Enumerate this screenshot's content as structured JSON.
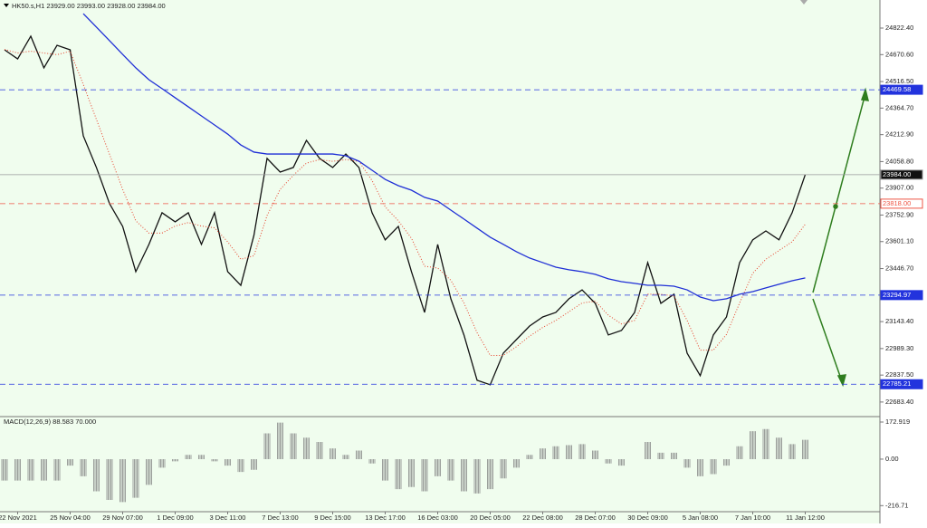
{
  "chart_data": [
    {
      "type": "line",
      "title": "HK50.s,H1  23929.00 23993.00 23928.00 23984.00",
      "categories": [
        null,
        "22 Nov 2021",
        null,
        null,
        null,
        "25 Nov 04:00",
        null,
        null,
        null,
        "29 Nov 07:00",
        null,
        null,
        null,
        "1 Dec 09:00",
        null,
        null,
        null,
        "3 Dec 11:00",
        null,
        null,
        null,
        "7 Dec 13:00",
        null,
        null,
        null,
        "9 Dec 15:00",
        null,
        null,
        null,
        "13 Dec 17:00",
        null,
        null,
        null,
        "16 Dec 03:00",
        null,
        null,
        null,
        "20 Dec 05:00",
        null,
        null,
        null,
        "22 Dec 08:00",
        null,
        null,
        null,
        "28 Dec 07:00",
        null,
        null,
        null,
        "30 Dec 09:00",
        null,
        null,
        null,
        "5 Jan 08:00",
        null,
        null,
        null,
        "7 Jan 10:00",
        null,
        null,
        null,
        "11 Jan 12:00"
      ],
      "series": [
        {
          "color": "#111111",
          "style": "solid",
          "values": [
            24698,
            24646,
            24776,
            24595,
            24724,
            24698,
            24206,
            24025,
            23818,
            23688,
            23429,
            23585,
            23766,
            23714,
            23766,
            23585,
            23766,
            23429,
            23351,
            23637,
            24077,
            23999,
            24025,
            24180,
            24077,
            24025,
            24102,
            24025,
            23766,
            23611,
            23688,
            23429,
            23196,
            23585,
            23274,
            23067,
            22808,
            22782,
            22963,
            23041,
            23118,
            23170,
            23196,
            23274,
            23325,
            23248,
            23067,
            23093,
            23196,
            23481,
            23248,
            23300,
            22963,
            22834,
            23067,
            23170,
            23481,
            23611,
            23662,
            23611,
            23766,
            23984
          ]
        },
        {
          "color": "#e8402a",
          "style": "dotted",
          "values": [
            24700,
            24680,
            24690,
            24680,
            24670,
            24690,
            24500,
            24300,
            24100,
            23900,
            23720,
            23650,
            23650,
            23690,
            23710,
            23690,
            23680,
            23600,
            23500,
            23520,
            23750,
            23900,
            23980,
            24050,
            24070,
            24060,
            24070,
            24060,
            23950,
            23800,
            23720,
            23620,
            23460,
            23450,
            23380,
            23250,
            23080,
            22950,
            22950,
            23000,
            23060,
            23110,
            23150,
            23200,
            23250,
            23260,
            23180,
            23130,
            23150,
            23300,
            23300,
            23290,
            23150,
            22980,
            22980,
            23070,
            23250,
            23420,
            23500,
            23550,
            23600,
            23700
          ]
        },
        {
          "color": "#1f2fd6",
          "style": "solid",
          "values": [
            null,
            null,
            null,
            null,
            null,
            null,
            24905,
            24828,
            24750,
            24672,
            24595,
            24527,
            24476,
            24424,
            24372,
            24320,
            24268,
            24216,
            24154,
            24113,
            24102,
            24102,
            24102,
            24102,
            24102,
            24102,
            24092,
            24061,
            24009,
            23957,
            23921,
            23895,
            23854,
            23833,
            23781,
            23730,
            23678,
            23626,
            23585,
            23543,
            23507,
            23481,
            23455,
            23440,
            23429,
            23414,
            23388,
            23372,
            23362,
            23351,
            23351,
            23346,
            23325,
            23284,
            23263,
            23274,
            23300,
            23315,
            23336,
            23357,
            23377,
            23393
          ]
        }
      ],
      "levels": [
        {
          "value": 24469.58,
          "color": "#2233dd"
        },
        {
          "value": 23984,
          "label": "23984.00",
          "color": "#999999"
        },
        {
          "value": 23818,
          "label": "23818.00",
          "color": "#ee5544"
        },
        {
          "value": 23294.97,
          "color": "#2233dd"
        },
        {
          "value": 22785.21,
          "color": "#2233dd"
        }
      ],
      "ylim": [
        22600,
        24983
      ],
      "yticks": [
        {
          "value": 24822.4,
          "label": "24822.40"
        },
        {
          "value": 24670.6,
          "label": "24670.60"
        },
        {
          "value": 24516.5,
          "label": "24516.50"
        },
        {
          "value": 24364.7,
          "label": "24364.70"
        },
        {
          "value": 24212.9,
          "label": "24212.90"
        },
        {
          "value": 24058.8,
          "label": "24058.80"
        },
        {
          "value": 23907,
          "label": "23907.00"
        },
        {
          "value": 23752.9,
          "label": "23752.90"
        },
        {
          "value": 23601.1,
          "label": "23601.10"
        },
        {
          "value": 23446.7,
          "label": "23446.70"
        },
        {
          "value": 23143.4,
          "label": "23143.40"
        },
        {
          "value": 22989.3,
          "label": "22989.30"
        },
        {
          "value": 22837.5,
          "label": "22837.50"
        },
        {
          "value": 22683.4,
          "label": "22683.40"
        }
      ]
    },
    {
      "type": "bar",
      "title": "MACD(12,26,9) 88.583 70.000",
      "color": "#888888",
      "values": [
        -100,
        -100,
        -100,
        -100,
        -100,
        -30,
        -80,
        -150,
        -190,
        -200,
        -180,
        -120,
        -40,
        -10,
        20,
        20,
        -10,
        -30,
        -60,
        -50,
        120,
        170,
        120,
        100,
        80,
        50,
        20,
        40,
        -20,
        -100,
        -140,
        -130,
        -150,
        -80,
        -100,
        -150,
        -160,
        -140,
        -90,
        -40,
        20,
        50,
        60,
        65,
        70,
        40,
        -20,
        -30,
        0,
        80,
        30,
        30,
        -40,
        -80,
        -70,
        -30,
        60,
        130,
        140,
        100,
        70,
        90
      ],
      "ylim": [
        -245,
        194
      ],
      "yticks": [
        172.919,
        {
          "value": 0,
          "label": "0.00"
        },
        -216.71
      ]
    }
  ]
}
